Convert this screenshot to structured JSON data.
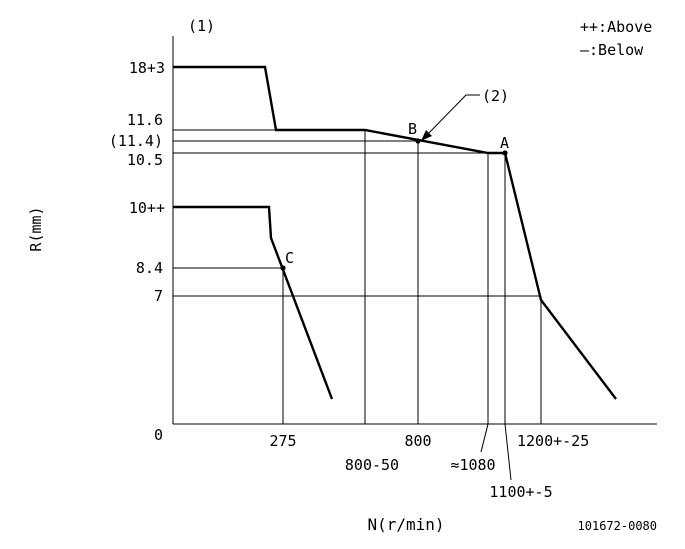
{
  "figure_label": "(1)",
  "callout_label": "(2)",
  "legend": {
    "above": "++:Above",
    "below": "—:Below"
  },
  "y_axis_title": "R(mm)",
  "x_axis_title": "N(r/min)",
  "y_ticks": {
    "t18": "18+3",
    "t11_6": "11.6",
    "t11_4": "(11.4)",
    "t10_5": "10.5",
    "t10": "10++",
    "t8_4": "8.4",
    "t7": "7",
    "t0": "0"
  },
  "x_ticks": {
    "t275": "275",
    "t800": "800",
    "t1200": "1200+-25",
    "t800_50": "800-50",
    "t1080": "≈1080",
    "t1100": "1100+-5"
  },
  "points": {
    "A": "A",
    "B": "B",
    "C": "C"
  },
  "footer_code": "101672-0080"
}
